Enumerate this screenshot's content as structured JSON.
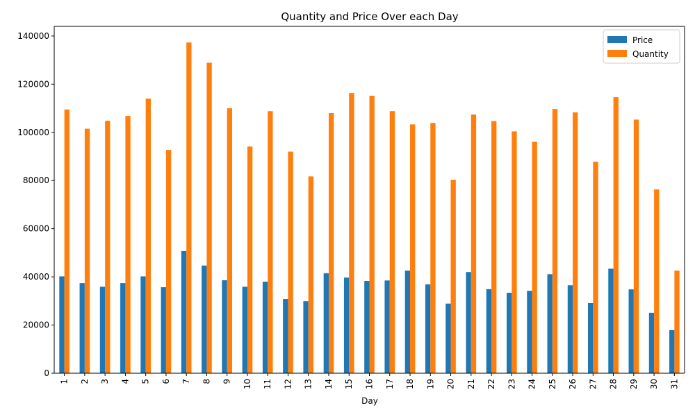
{
  "chart_data": {
    "type": "bar",
    "title": "Quantity and Price Over each Day",
    "xlabel": "Day",
    "ylabel": "",
    "categories": [
      "1",
      "2",
      "3",
      "4",
      "5",
      "6",
      "7",
      "8",
      "9",
      "10",
      "11",
      "12",
      "13",
      "14",
      "15",
      "16",
      "17",
      "18",
      "19",
      "20",
      "21",
      "22",
      "23",
      "24",
      "25",
      "26",
      "27",
      "28",
      "29",
      "30",
      "31"
    ],
    "series": [
      {
        "name": "Price",
        "color": "#1f77b4",
        "values": [
          40200,
          37400,
          35900,
          37400,
          40200,
          35700,
          50700,
          44700,
          38600,
          35900,
          38000,
          30800,
          29900,
          41500,
          39700,
          38300,
          38500,
          42600,
          36900,
          28900,
          42000,
          34900,
          33400,
          34200,
          41100,
          36500,
          29100,
          43400,
          34800,
          25100,
          17900
        ]
      },
      {
        "name": "Quantity",
        "color": "#ff7f0e",
        "values": [
          109500,
          101500,
          104800,
          106800,
          114000,
          92700,
          137300,
          128900,
          110000,
          94100,
          108800,
          92000,
          81700,
          108000,
          116300,
          115200,
          108800,
          103300,
          103900,
          80300,
          107400,
          104700,
          100400,
          96100,
          109700,
          108300,
          87800,
          114600,
          105300,
          76300,
          42600
        ]
      }
    ],
    "ylim": [
      0,
      144000
    ],
    "yticks": [
      0,
      20000,
      40000,
      60000,
      80000,
      100000,
      120000,
      140000
    ],
    "legend_position": "top-right",
    "grid": false
  }
}
